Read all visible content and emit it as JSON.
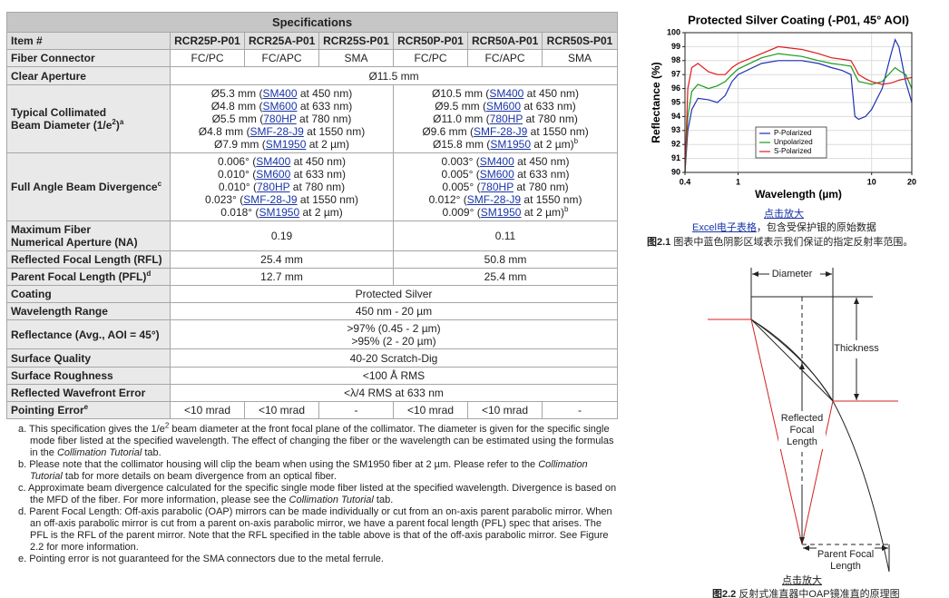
{
  "table": {
    "title": "Specifications",
    "header": [
      "Item #",
      "RCR25P-P01",
      "RCR25A-P01",
      "RCR25S-P01",
      "RCR50P-P01",
      "RCR50A-P01",
      "RCR50S-P01"
    ],
    "rows": [
      {
        "label": "Fiber Connector",
        "cells": [
          "FC/PC",
          "FC/APC",
          "SMA",
          "FC/PC",
          "FC/APC",
          "SMA"
        ]
      },
      {
        "label": "Clear Aperture",
        "cells": [
          "Ø11.5 mm"
        ]
      },
      {
        "label": "Typical Collimated",
        "label2": "Beam Diameter (1/e",
        "sup": "2",
        "label3": ")",
        "note": "a",
        "cells": [
          [
            {
              "pre": "Ø5.3 mm (",
              "link": "SM400",
              "post": " at 450 nm)"
            },
            {
              "pre": "Ø4.8 mm (",
              "link": "SM600",
              "post": " at 633 nm)"
            },
            {
              "pre": "Ø5.5 mm (",
              "link": "780HP",
              "post": " at 780 nm)"
            },
            {
              "pre": "Ø4.8 mm (",
              "link": "SMF-28-J9",
              "post": " at 1550 nm)"
            },
            {
              "pre": "Ø7.9 mm (",
              "link": "SM1950",
              "post": " at 2 µm)"
            }
          ],
          [
            {
              "pre": "Ø10.5 mm (",
              "link": "SM400",
              "post": " at 450 nm)"
            },
            {
              "pre": "Ø9.5 mm (",
              "link": "SM600",
              "post": " at 633 nm)"
            },
            {
              "pre": "Ø11.0 mm (",
              "link": "780HP",
              "post": " at 780 nm)"
            },
            {
              "pre": "Ø9.6 mm (",
              "link": "SMF-28-J9",
              "post": " at 1550 nm)"
            },
            {
              "pre": "Ø15.8 mm (",
              "link": "SM1950",
              "post": " at 2 µm)",
              "note": "b"
            }
          ]
        ]
      },
      {
        "label": "Full Angle Beam Divergence",
        "note": "c",
        "cells": [
          [
            {
              "pre": "0.006° (",
              "link": "SM400",
              "post": " at 450 nm)"
            },
            {
              "pre": "0.010° (",
              "link": "SM600",
              "post": " at 633 nm)"
            },
            {
              "pre": "0.010° (",
              "link": "780HP",
              "post": " at 780 nm)"
            },
            {
              "pre": "0.023° (",
              "link": "SMF-28-J9",
              "post": " at 1550 nm)"
            },
            {
              "pre": "0.018° (",
              "link": "SM1950",
              "post": " at 2 µm)"
            }
          ],
          [
            {
              "pre": "0.003° (",
              "link": "SM400",
              "post": " at 450 nm)"
            },
            {
              "pre": "0.005° (",
              "link": "SM600",
              "post": " at 633 nm)"
            },
            {
              "pre": "0.005° (",
              "link": "780HP",
              "post": " at 780 nm)"
            },
            {
              "pre": "0.012° (",
              "link": "SMF-28-J9",
              "post": " at 1550 nm)"
            },
            {
              "pre": "0.009° (",
              "link": "SM1950",
              "post": " at 2 µm)",
              "note": "b"
            }
          ]
        ]
      },
      {
        "label": "Maximum Fiber",
        "label2": "Numerical Aperture (NA)",
        "cells": [
          "0.19",
          "0.11"
        ]
      },
      {
        "label": "Reflected Focal Length (RFL)",
        "cells": [
          "25.4 mm",
          "50.8 mm"
        ]
      },
      {
        "label": "Parent Focal Length (PFL)",
        "note": "d",
        "cells": [
          "12.7 mm",
          "25.4 mm"
        ]
      },
      {
        "label": "Coating",
        "cells": [
          "Protected Silver"
        ]
      },
      {
        "label": "Wavelength Range",
        "cells": [
          "450 nm - 20 µm"
        ]
      },
      {
        "label": "Reflectance (Avg., AOI = 45°)",
        "cells": [
          ">97% (0.45 - 2 µm)",
          ">95% (2 - 20 µm)"
        ]
      },
      {
        "label": "Surface Quality",
        "cells": [
          "40-20 Scratch-Dig"
        ]
      },
      {
        "label": "Surface Roughness",
        "cells": [
          "<100 Å RMS"
        ]
      },
      {
        "label": "Reflected Wavefront Error",
        "cells": [
          "<λ/4 RMS at 633 nm"
        ]
      },
      {
        "label": "Pointing Error",
        "note": "e",
        "cells": [
          "<10 mrad",
          "<10 mrad",
          "-",
          "<10 mrad",
          "<10 mrad",
          "-"
        ]
      }
    ]
  },
  "footnotes": [
    {
      "marker": "a.",
      "t1": "This specification gives the 1/e",
      "sup": "2",
      "t2": " beam diameter at the front focal plane of the collimator. The diameter is given for the specific single mode fiber listed at the specified wavelength. The effect of changing the fiber or the wavelength can be estimated using the formulas in the ",
      "em": "Collimation Tutorial",
      "t3": " tab."
    },
    {
      "marker": "b.",
      "t1": "Please note that the collimator housing will clip the beam when using the SM1950 fiber at 2 µm. Please refer to the ",
      "em": "Collimation Tutorial",
      "t3": " tab for more details on beam divergence from an optical fiber."
    },
    {
      "marker": "c.",
      "t1": "Approximate beam divergence calculated for the specific single mode fiber listed at the specified wavelength. Divergence is based on the MFD of the fiber. For more information, please see the ",
      "em": "Collimation Tutorial",
      "t3": " tab."
    },
    {
      "marker": "d.",
      "t1": "Parent Focal Length: Off-axis parabolic (OAP) mirrors can be made individually or cut from an on-axis parent parabolic mirror. When an off-axis parabolic mirror is cut from a parent on-axis parabolic mirror, we have a parent focal length (PFL) spec that arises. The PFL is the RFL of the parent mirror. Note that the RFL specified in the table above is that of the off-axis parabolic mirror. See Figure 2.2 for more information."
    },
    {
      "marker": "e.",
      "t1": "Pointing error is not guaranteed for the SMA connectors due to the metal ferrule."
    }
  ],
  "chart_data": {
    "type": "line",
    "title": "Protected Silver Coating (-P01, 45° AOI)",
    "x_label": "Wavelength (µm)",
    "y_label": "Reflectance (%)",
    "x": [
      0.4,
      0.42,
      0.45,
      0.5,
      0.6,
      0.7,
      0.8,
      0.9,
      1,
      1.5,
      2,
      3,
      4,
      5,
      6,
      7,
      7.5,
      8,
      9,
      10,
      12,
      14,
      15,
      16,
      18,
      20
    ],
    "series": [
      {
        "name": "P-Polarized",
        "color": "#1f2fb4",
        "values": [
          90,
          93,
          94.5,
          95.3,
          95.2,
          95,
          95.5,
          96.5,
          97,
          97.8,
          98,
          98,
          97.8,
          97.5,
          97.3,
          97,
          94,
          93.8,
          94,
          94.5,
          96,
          98.5,
          99.5,
          99,
          96.5,
          95
        ]
      },
      {
        "name": "Unpolarized",
        "color": "#1a9a1a",
        "values": [
          90,
          94,
          95.8,
          96.3,
          96,
          96.2,
          96.5,
          97,
          97.4,
          98.2,
          98.5,
          98.3,
          98,
          97.8,
          97.7,
          97.6,
          97,
          96.5,
          96.4,
          96.3,
          96.5,
          97.2,
          97.5,
          97.3,
          97,
          96
        ]
      },
      {
        "name": "S-Polarized",
        "color": "#e01a1a",
        "values": [
          90,
          96,
          97.5,
          97.8,
          97.2,
          97,
          97,
          97.5,
          97.8,
          98.5,
          99,
          98.8,
          98.5,
          98.2,
          98.1,
          98,
          97.5,
          97,
          96.7,
          96.5,
          96.3,
          96.4,
          96.5,
          96.6,
          96.7,
          96.8
        ]
      }
    ],
    "xscale": "log",
    "xlim": [
      0.4,
      20
    ],
    "xticks": [
      0.4,
      1,
      10,
      20
    ],
    "ylim": [
      90,
      100
    ],
    "yticks": [
      90,
      91,
      92,
      93,
      94,
      95,
      96,
      97,
      98,
      99,
      100
    ],
    "grid": true,
    "legend": "lower center"
  },
  "figure1": {
    "enlarge": "点击放大",
    "excel_link": "Excel电子表格",
    "excel_text": "，包含受保护银的原始数据",
    "caption_num": "图2.1",
    "caption": " 图表中蓝色阴影区域表示我们保证的指定反射率范围。"
  },
  "figure2": {
    "diameter": "Diameter",
    "thickness": "Thickness",
    "rfl": [
      "Reflected",
      "Focal",
      "Length"
    ],
    "pfl": [
      "Parent Focal",
      "Length"
    ],
    "enlarge": "点击放大",
    "caption_num": "图2.2",
    "caption": " 反射式准直器中OAP镜准直的原理图"
  }
}
